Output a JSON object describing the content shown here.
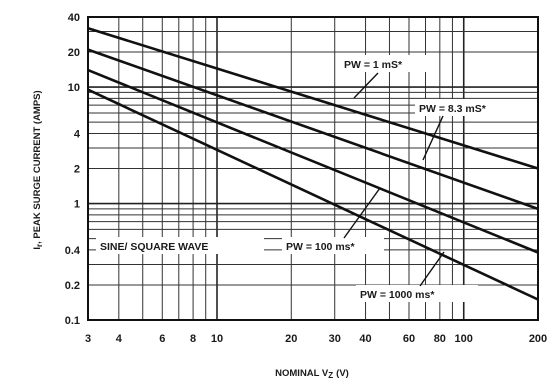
{
  "chart_data": {
    "type": "line",
    "title": "",
    "xlabel": "NOMINAL V",
    "xlabel_subscript": "Z",
    "xlabel_unit": "(V)",
    "ylabel": "I",
    "ylabel_subscript": "r",
    "ylabel_rest": ", PEAK SURGE CURRENT (AMPS)",
    "x_scale": "log",
    "y_scale": "log",
    "xlim": [
      3,
      200
    ],
    "ylim": [
      0.1,
      40
    ],
    "x_ticks": [
      3,
      4,
      6,
      8,
      10,
      20,
      30,
      40,
      60,
      80,
      100,
      200
    ],
    "y_ticks": [
      0.1,
      0.2,
      0.4,
      1,
      2,
      4,
      10,
      20,
      40
    ],
    "grid": true,
    "series": [
      {
        "name": "PW = 1 mS*",
        "x": [
          3,
          200
        ],
        "y": [
          32,
          2.0
        ]
      },
      {
        "name": "PW = 8.3 mS*",
        "x": [
          3,
          200
        ],
        "y": [
          21,
          0.9
        ]
      },
      {
        "name": "PW = 100 ms*",
        "x": [
          3,
          200
        ],
        "y": [
          14,
          0.38
        ]
      },
      {
        "name": "PW = 1000 ms*",
        "x": [
          3,
          200
        ],
        "y": [
          9.5,
          0.15
        ]
      }
    ],
    "annotations": [
      {
        "text": "SINE/ SQUARE WAVE"
      }
    ]
  }
}
